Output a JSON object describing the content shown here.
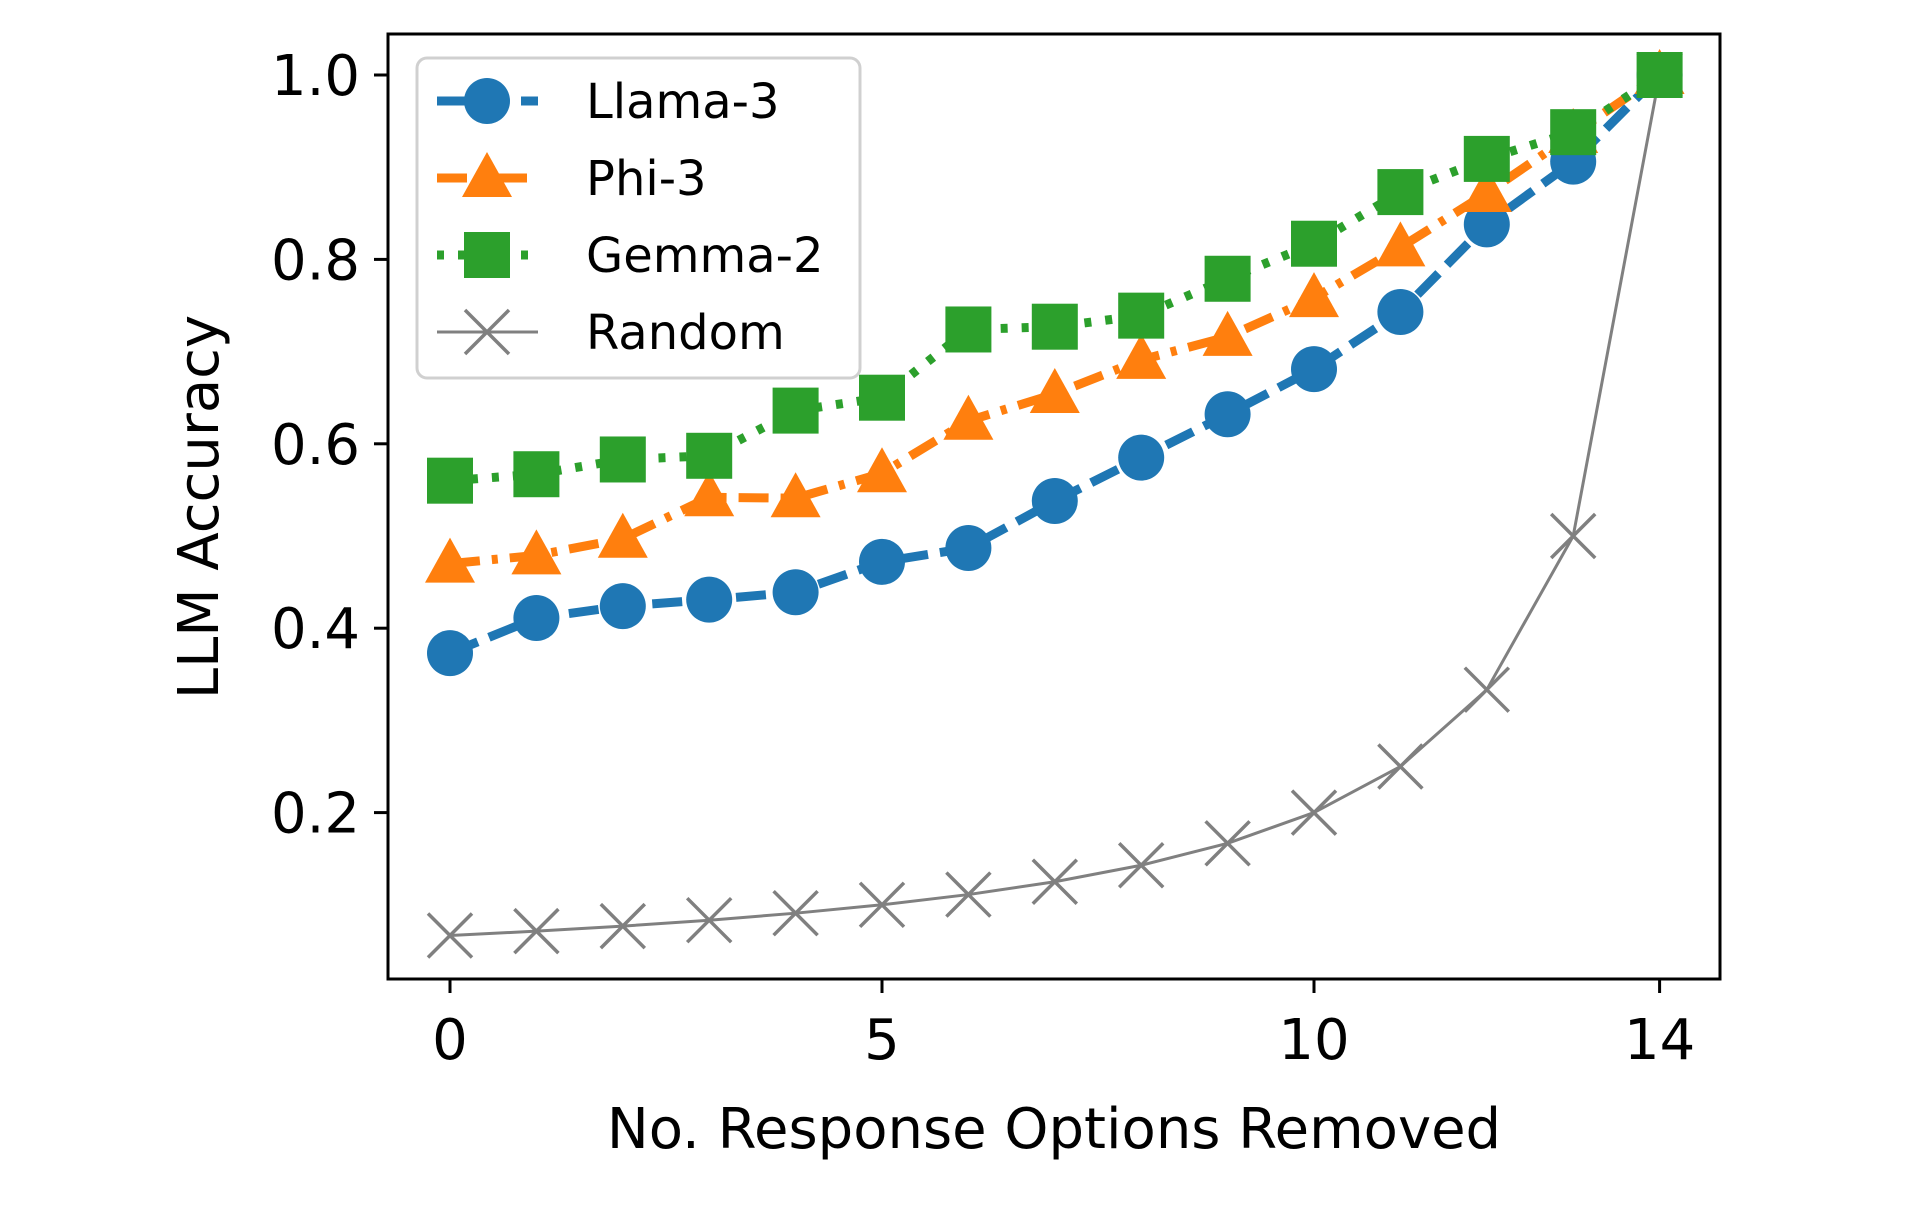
{
  "chart_data": {
    "type": "line",
    "title": "",
    "xlabel": "No. Response Options Removed",
    "ylabel": "LLM Accuracy",
    "x": [
      0,
      1,
      2,
      3,
      4,
      5,
      6,
      7,
      8,
      9,
      10,
      11,
      12,
      13,
      14
    ],
    "xticks": [
      0,
      5,
      10,
      14
    ],
    "xtick_labels": [
      "0",
      "5",
      "10",
      "14"
    ],
    "yticks": [
      0.2,
      0.4,
      0.6,
      0.8,
      1.0
    ],
    "ytick_labels": [
      "0.2",
      "0.4",
      "0.6",
      "0.8",
      "1.0"
    ],
    "xlim": [
      -0.9,
      14.7
    ],
    "ylim": [
      0.018,
      1.044
    ],
    "grid": false,
    "legend_position": "upper-left",
    "series": [
      {
        "name": "Llama-3",
        "color": "#1f77b4",
        "marker": "circle",
        "linestyle": "dashed",
        "values": [
          0.373,
          0.411,
          0.424,
          0.431,
          0.439,
          0.472,
          0.487,
          0.538,
          0.585,
          0.632,
          0.681,
          0.743,
          0.838,
          0.906,
          1.0
        ]
      },
      {
        "name": "Phi-3",
        "color": "#ff7f0e",
        "marker": "triangle",
        "linestyle": "dashdot",
        "values": [
          0.47,
          0.479,
          0.497,
          0.542,
          0.541,
          0.568,
          0.625,
          0.654,
          0.691,
          0.716,
          0.758,
          0.813,
          0.872,
          0.936,
          1.0
        ]
      },
      {
        "name": "Gemma-2",
        "color": "#2ca02c",
        "marker": "square",
        "linestyle": "dotted",
        "values": [
          0.56,
          0.567,
          0.583,
          0.587,
          0.636,
          0.65,
          0.724,
          0.727,
          0.739,
          0.779,
          0.817,
          0.873,
          0.909,
          0.938,
          1.0
        ]
      },
      {
        "name": "Random",
        "color": "#808080",
        "marker": "x",
        "linestyle": "solid",
        "values": [
          0.0667,
          0.0714,
          0.0769,
          0.0833,
          0.0909,
          0.1,
          0.1111,
          0.125,
          0.1429,
          0.1667,
          0.2,
          0.25,
          0.3333,
          0.5,
          1.0
        ]
      }
    ]
  }
}
